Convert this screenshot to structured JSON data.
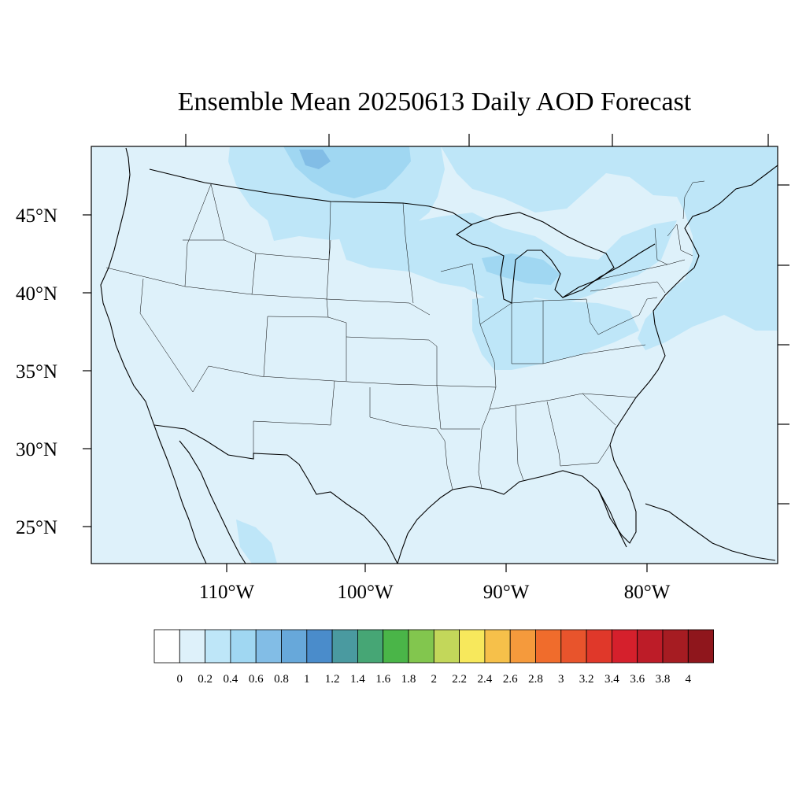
{
  "title": "Ensemble Mean 20250613 Daily AOD Forecast",
  "map": {
    "projection": "Lambert conformal",
    "region": "Continental United States",
    "lat_ticks": [
      {
        "value": 45,
        "label": "45°N"
      },
      {
        "value": 40,
        "label": "40°N"
      },
      {
        "value": 35,
        "label": "35°N"
      },
      {
        "value": 30,
        "label": "30°N"
      },
      {
        "value": 25,
        "label": "25°N"
      }
    ],
    "lon_ticks": [
      {
        "value": -110,
        "label": "110°W"
      },
      {
        "value": -100,
        "label": "100°W"
      },
      {
        "value": -90,
        "label": "90°W"
      },
      {
        "value": -80,
        "label": "80°W"
      }
    ],
    "background_class": "0.0–0.2",
    "enhanced_regions": [
      {
        "area": "Northern Plains / southern Canada",
        "class": "0.2–0.4"
      },
      {
        "area": "Upper Midwest / Great Lakes",
        "class": "0.2–0.4"
      },
      {
        "area": "Ohio Valley",
        "class": "0.2–0.4"
      },
      {
        "area": "Northeast / Atlantic offshore",
        "class": "0.2–0.4"
      },
      {
        "area": "Saskatchewan / Manitoba",
        "class": "0.4–0.6"
      }
    ]
  },
  "colorbar": {
    "labels": [
      "0",
      "0.2",
      "0.4",
      "0.6",
      "0.8",
      "1",
      "1.2",
      "1.4",
      "1.6",
      "1.8",
      "2",
      "2.2",
      "2.4",
      "2.6",
      "2.8",
      "3",
      "3.2",
      "3.4",
      "3.6",
      "3.8",
      "4"
    ],
    "colors": [
      "#ffffff",
      "#def1fa",
      "#bee6f8",
      "#a0d7f2",
      "#82bde6",
      "#67a8da",
      "#4a8ccb",
      "#4a9aa0",
      "#46a675",
      "#4ab548",
      "#82c64e",
      "#c3d75a",
      "#f7e85c",
      "#f6c04a",
      "#f59a3c",
      "#f06c2c",
      "#e8542c",
      "#e0382a",
      "#d5202c",
      "#bd1c28",
      "#a61c22",
      "#8f161c"
    ]
  }
}
